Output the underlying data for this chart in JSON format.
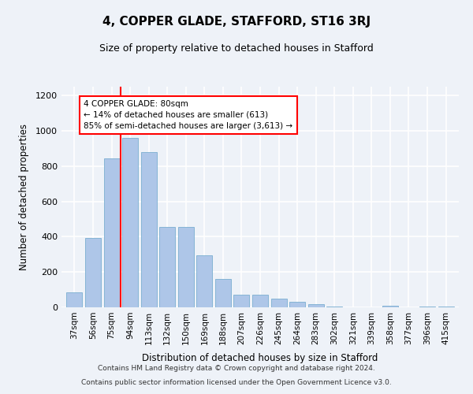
{
  "title": "4, COPPER GLADE, STAFFORD, ST16 3RJ",
  "subtitle": "Size of property relative to detached houses in Stafford",
  "xlabel": "Distribution of detached houses by size in Stafford",
  "ylabel": "Number of detached properties",
  "categories": [
    "37sqm",
    "56sqm",
    "75sqm",
    "94sqm",
    "113sqm",
    "132sqm",
    "150sqm",
    "169sqm",
    "188sqm",
    "207sqm",
    "226sqm",
    "245sqm",
    "264sqm",
    "283sqm",
    "302sqm",
    "321sqm",
    "339sqm",
    "358sqm",
    "377sqm",
    "396sqm",
    "415sqm"
  ],
  "values": [
    85,
    395,
    845,
    960,
    880,
    455,
    455,
    295,
    160,
    70,
    70,
    50,
    33,
    20,
    5,
    0,
    0,
    10,
    0,
    5,
    5
  ],
  "bar_color": "#aec6e8",
  "bar_edge_color": "#7aaed0",
  "property_line_label": "4 COPPER GLADE: 80sqm",
  "annotation_line1": "← 14% of detached houses are smaller (613)",
  "annotation_line2": "85% of semi-detached houses are larger (3,613) →",
  "annotation_box_color": "white",
  "annotation_box_edge_color": "red",
  "vline_color": "red",
  "vline_x": 2.5,
  "ylim": [
    0,
    1250
  ],
  "yticks": [
    0,
    200,
    400,
    600,
    800,
    1000,
    1200
  ],
  "background_color": "#eef2f8",
  "grid_color": "white",
  "footer_line1": "Contains HM Land Registry data © Crown copyright and database right 2024.",
  "footer_line2": "Contains public sector information licensed under the Open Government Licence v3.0."
}
